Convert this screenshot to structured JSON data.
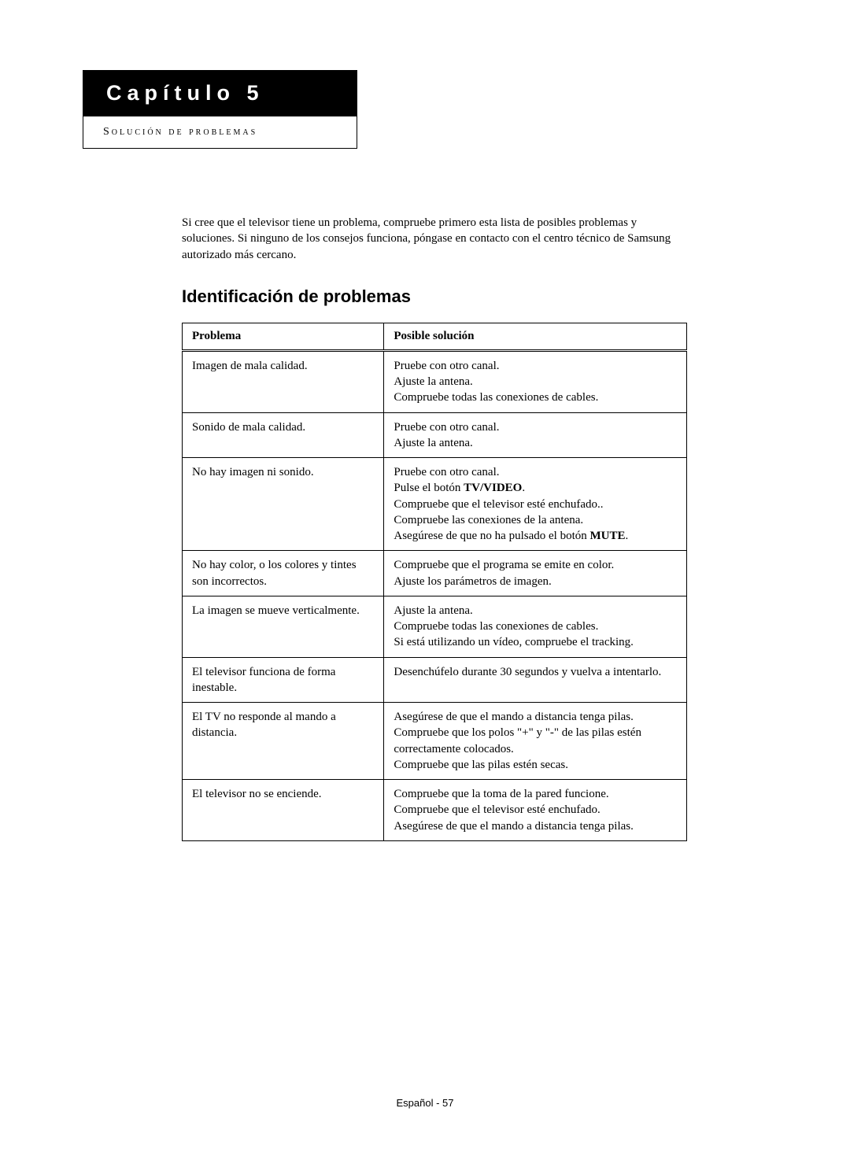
{
  "chapter": {
    "title": "Capítulo 5",
    "subtitle": "Solución de problemas"
  },
  "intro": "Si cree que el televisor tiene un problema, compruebe primero esta lista de posibles problemas y soluciones. Si ninguno de los consejos funciona, póngase en contacto con el centro técnico de Samsung autorizado más cercano.",
  "section_title": "Identificación de problemas",
  "table": {
    "headers": [
      "Problema",
      "Posible solución"
    ],
    "rows": [
      {
        "problem": "Imagen de mala calidad.",
        "solution_html": "Pruebe con otro canal.<br>Ajuste la antena.<br>Compruebe todas las conexiones de cables."
      },
      {
        "problem": "Sonido de mala calidad.",
        "solution_html": "Pruebe con otro canal.<br>Ajuste la antena."
      },
      {
        "problem": "No hay imagen ni sonido.",
        "solution_html": "Pruebe con otro canal.<br>Pulse el botón <span class=\"bold-inline\">TV/VIDEO</span>.<br>Compruebe que el televisor esté enchufado..<br>Compruebe las conexiones de la antena.<br>Asegúrese de que no ha pulsado el botón <span class=\"bold-inline\">MUTE</span>."
      },
      {
        "problem": "No hay color, o los colores y tintes son incorrectos.",
        "solution_html": "Compruebe que el programa se emite en color.<br>Ajuste los parámetros de imagen."
      },
      {
        "problem": "La imagen se mueve verticalmente.",
        "solution_html": "Ajuste la antena.<br>Compruebe todas las conexiones de cables.<br>Si está utilizando un vídeo, compruebe el tracking."
      },
      {
        "problem": "El televisor funciona de forma inestable.",
        "solution_html": "Desenchúfelo durante 30 segundos y vuelva a intentarlo."
      },
      {
        "problem": "El TV no responde al mando a distancia.",
        "solution_html": "Asegúrese de que el mando a distancia tenga pilas.<br>Compruebe que los polos \"+\" y \"-\" de las pilas estén correctamente colocados.<br>Compruebe que las pilas estén secas."
      },
      {
        "problem": "El televisor no se enciende.",
        "solution_html": "Compruebe que la toma de la pared funcione.<br>Compruebe que el televisor esté enchufado.<br>Asegúrese de que el mando a distancia tenga pilas."
      }
    ]
  },
  "footer": "Español - 57"
}
